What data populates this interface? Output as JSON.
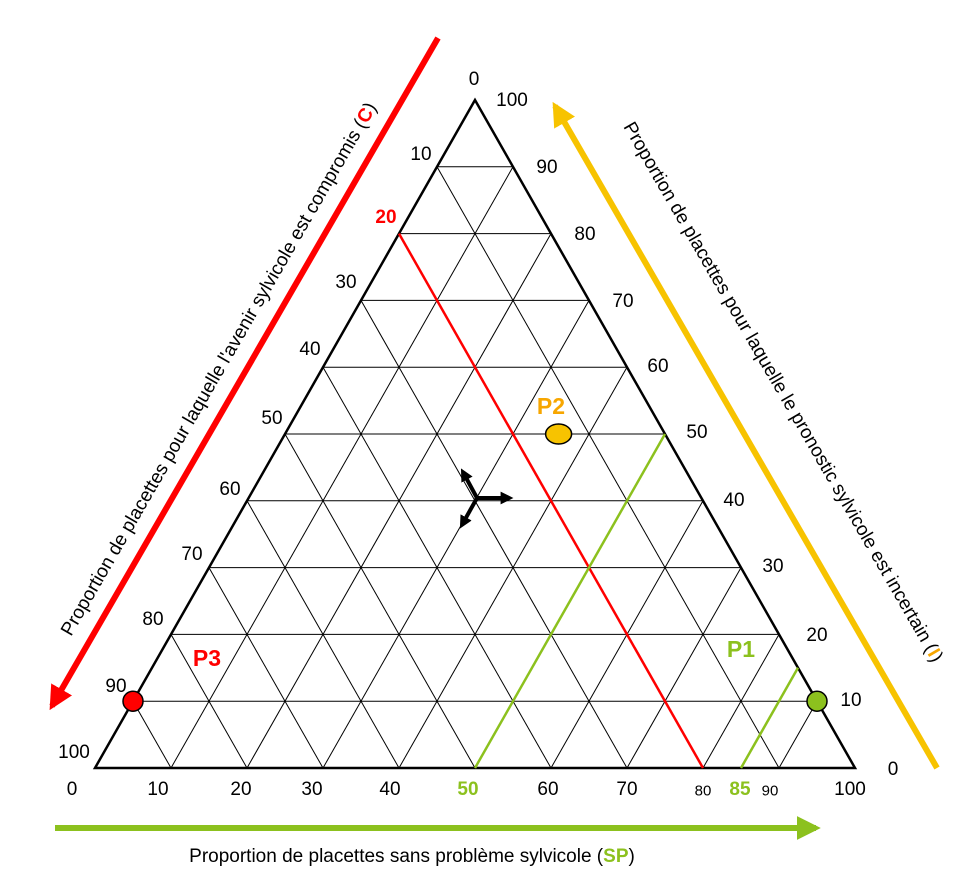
{
  "colors": {
    "c": "#ff0000",
    "i": "#f7c300",
    "sp": "#8cc11e",
    "grid": "#000000"
  },
  "axes": {
    "sp": {
      "title_prefix": "Proportion de placettes sans problème sylvicole (",
      "code": "SP",
      "title_suffix": ")",
      "ticks": [
        "0",
        "10",
        "20",
        "30",
        "40",
        "50",
        "60",
        "70",
        "80",
        "85",
        "90",
        "100"
      ]
    },
    "c": {
      "title_prefix": "Proportion de placettes pour laquelle l'avenir sylvicole est compromis (",
      "code": "C",
      "title_suffix": ")",
      "ticks": [
        "0",
        "10",
        "20",
        "30",
        "40",
        "50",
        "60",
        "70",
        "80",
        "90",
        "100"
      ]
    },
    "i": {
      "title_prefix": "Proportion de placettes pour laquelle le pronostic sylvicole est incertain (",
      "code": "I",
      "title_suffix": ")",
      "ticks": [
        "100",
        "90",
        "80",
        "70",
        "60",
        "50",
        "40",
        "30",
        "20",
        "10",
        "0"
      ]
    }
  },
  "thresholds": {
    "c": "20",
    "sp_low": "50",
    "sp_high": "85"
  },
  "points": [
    {
      "label": "P1",
      "sp": 90,
      "i": 10,
      "c": 0,
      "color": "#8cc11e"
    },
    {
      "label": "P2",
      "sp": 36,
      "i": 50,
      "c": 14,
      "color": "#f7c300"
    },
    {
      "label": "P3",
      "sp": 0,
      "i": 10,
      "c": 90,
      "color": "#ff0000"
    }
  ],
  "point_label_colors": {
    "P1": "#8cc11e",
    "P2": "#f7a600",
    "P3": "#ff0000"
  },
  "direction_icon": "three-way-arrows-icon"
}
